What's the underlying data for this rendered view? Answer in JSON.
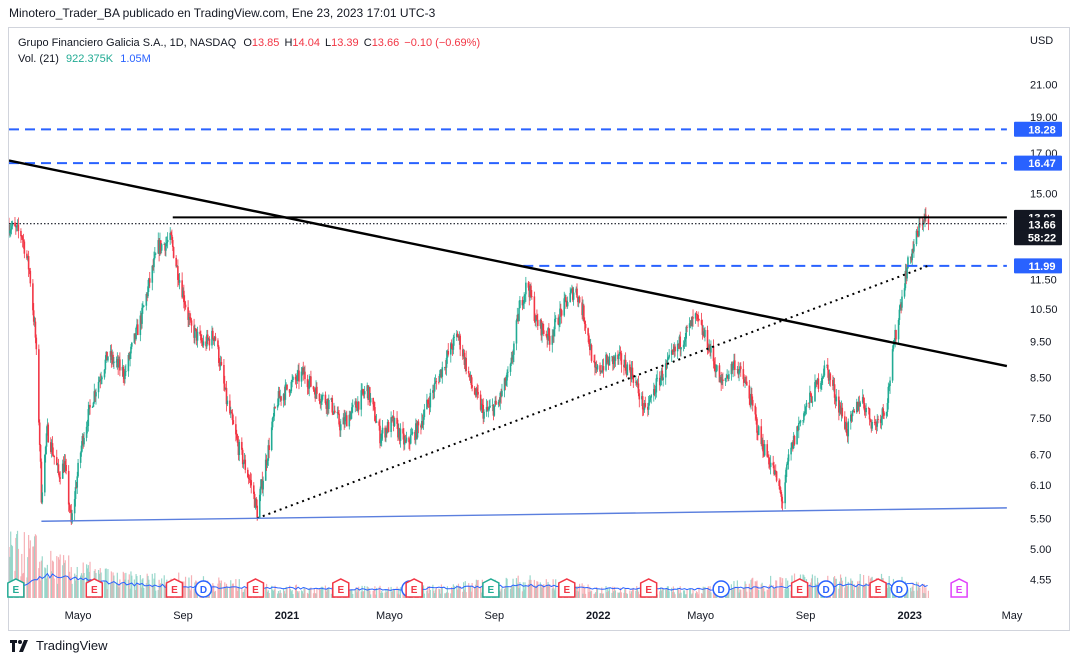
{
  "header": {
    "publisher_line": "Minotero_Trader_BA publicado en TradingView.com, Ene 23, 2023 17:01 UTC-3"
  },
  "legend": {
    "symbol": "Grupo Financiero Galicia S.A., 1D, NASDAQ",
    "o_label": "O",
    "o_value": "13.85",
    "h_label": "H",
    "h_value": "14.04",
    "l_label": "L",
    "l_value": "13.39",
    "c_label": "C",
    "c_value": "13.66",
    "change": "−0.10 (−0.69%)",
    "vol_label": "Vol. (21)",
    "vol_value": "922.375K",
    "vol_ma": "1.05M"
  },
  "footer": {
    "brand": "TradingView"
  },
  "colors": {
    "up": "#22ab94",
    "down": "#f23645",
    "blue_line": "#2962ff",
    "trend": "#000000",
    "support": "#5b7fde"
  },
  "chart_data": {
    "type": "candlestick",
    "currency": "USD",
    "y_scale": "log",
    "ylim": [
      4.3,
      23.5
    ],
    "y_ticks": [
      "21.00",
      "19.00",
      "17.00",
      "15.00",
      "11.50",
      "10.50",
      "9.50",
      "8.50",
      "7.50",
      "6.70",
      "6.10",
      "5.50",
      "5.00",
      "4.55"
    ],
    "x_ticks": [
      "Mayo",
      "Sep",
      "2021",
      "Mayo",
      "Sep",
      "2022",
      "Mayo",
      "Sep",
      "2023",
      "May"
    ],
    "x_tick_dates": [
      "2020-05-01",
      "2020-09-01",
      "2021-01-01",
      "2021-05-01",
      "2021-09-01",
      "2022-01-01",
      "2022-05-01",
      "2022-09-01",
      "2023-01-01",
      "2023-05-01"
    ],
    "price_path": [
      [
        "2020-02-10",
        13.6
      ],
      [
        "2020-02-25",
        13.2
      ],
      [
        "2020-03-05",
        11.8
      ],
      [
        "2020-03-12",
        9.6
      ],
      [
        "2020-03-19",
        5.9
      ],
      [
        "2020-03-26",
        7.2
      ],
      [
        "2020-04-08",
        6.3
      ],
      [
        "2020-04-15",
        6.5
      ],
      [
        "2020-04-23",
        5.4
      ],
      [
        "2020-05-06",
        7.0
      ],
      [
        "2020-05-20",
        8.1
      ],
      [
        "2020-06-05",
        9.1
      ],
      [
        "2020-06-25",
        8.6
      ],
      [
        "2020-07-15",
        10.3
      ],
      [
        "2020-08-03",
        12.7
      ],
      [
        "2020-08-18",
        13.0
      ],
      [
        "2020-08-25",
        11.9
      ],
      [
        "2020-09-10",
        9.9
      ],
      [
        "2020-09-25",
        9.4
      ],
      [
        "2020-10-08",
        9.7
      ],
      [
        "2020-10-22",
        7.9
      ],
      [
        "2020-11-04",
        6.9
      ],
      [
        "2020-11-20",
        6.1
      ],
      [
        "2020-11-27",
        5.6
      ],
      [
        "2020-12-10",
        6.8
      ],
      [
        "2020-12-20",
        7.9
      ],
      [
        "2021-01-05",
        8.3
      ],
      [
        "2021-01-20",
        8.6
      ],
      [
        "2021-02-05",
        8.1
      ],
      [
        "2021-02-22",
        7.8
      ],
      [
        "2021-03-05",
        7.3
      ],
      [
        "2021-03-20",
        7.7
      ],
      [
        "2021-04-05",
        8.2
      ],
      [
        "2021-04-20",
        7.1
      ],
      [
        "2021-05-05",
        7.4
      ],
      [
        "2021-05-20",
        6.9
      ],
      [
        "2021-06-05",
        7.3
      ],
      [
        "2021-06-20",
        8.1
      ],
      [
        "2021-07-05",
        8.9
      ],
      [
        "2021-07-20",
        9.7
      ],
      [
        "2021-08-05",
        8.3
      ],
      [
        "2021-08-20",
        7.6
      ],
      [
        "2021-09-05",
        7.8
      ],
      [
        "2021-09-20",
        8.7
      ],
      [
        "2021-10-01",
        10.6
      ],
      [
        "2021-10-10",
        11.4
      ],
      [
        "2021-10-20",
        10.1
      ],
      [
        "2021-11-05",
        9.6
      ],
      [
        "2021-11-20",
        10.5
      ],
      [
        "2021-12-05",
        11.2
      ],
      [
        "2021-12-15",
        10.3
      ],
      [
        "2021-12-28",
        8.6
      ],
      [
        "2022-01-10",
        8.9
      ],
      [
        "2022-01-25",
        9.0
      ],
      [
        "2022-02-10",
        8.6
      ],
      [
        "2022-02-25",
        7.6
      ],
      [
        "2022-03-10",
        8.3
      ],
      [
        "2022-03-25",
        8.9
      ],
      [
        "2022-04-10",
        9.6
      ],
      [
        "2022-04-25",
        10.2
      ],
      [
        "2022-05-10",
        9.4
      ],
      [
        "2022-05-25",
        8.3
      ],
      [
        "2022-06-10",
        8.9
      ],
      [
        "2022-06-25",
        8.2
      ],
      [
        "2022-07-10",
        7.0
      ],
      [
        "2022-07-25",
        6.4
      ],
      [
        "2022-08-05",
        5.8
      ],
      [
        "2022-08-12",
        6.6
      ],
      [
        "2022-08-25",
        7.4
      ],
      [
        "2022-09-10",
        8.1
      ],
      [
        "2022-09-25",
        8.8
      ],
      [
        "2022-10-05",
        8.1
      ],
      [
        "2022-10-20",
        7.2
      ],
      [
        "2022-11-05",
        8.0
      ],
      [
        "2022-11-20",
        7.3
      ],
      [
        "2022-12-05",
        7.8
      ],
      [
        "2022-12-15",
        9.6
      ],
      [
        "2022-12-28",
        11.8
      ],
      [
        "2023-01-10",
        13.2
      ],
      [
        "2023-01-18",
        14.0
      ],
      [
        "2023-01-23",
        13.66
      ]
    ],
    "volume_axis_max": 5000000,
    "volume_path": [
      [
        "2020-03-12",
        4500000
      ],
      [
        "2020-03-20",
        3400000
      ],
      [
        "2020-06-20",
        1800000
      ],
      [
        "2020-09-01",
        1700000
      ],
      [
        "2021-01-01",
        900000
      ],
      [
        "2021-06-01",
        800000
      ],
      [
        "2021-10-10",
        1600000
      ],
      [
        "2022-01-01",
        800000
      ],
      [
        "2022-05-01",
        800000
      ],
      [
        "2022-08-05",
        1700000
      ],
      [
        "2022-12-20",
        1600000
      ],
      [
        "2023-01-23",
        922375
      ]
    ],
    "volume_ma_path": [
      [
        "2020-02-10",
        700000
      ],
      [
        "2020-03-25",
        1800000
      ],
      [
        "2020-06-15",
        1200000
      ],
      [
        "2020-09-01",
        900000
      ],
      [
        "2021-01-01",
        800000
      ],
      [
        "2021-05-01",
        700000
      ],
      [
        "2021-10-10",
        1000000
      ],
      [
        "2022-01-01",
        800000
      ],
      [
        "2022-05-01",
        700000
      ],
      [
        "2022-08-05",
        900000
      ],
      [
        "2022-12-20",
        1100000
      ],
      [
        "2023-01-23",
        1050000
      ]
    ],
    "drawings": {
      "descending_trendline": [
        [
          "2020-02-10",
          16.6
        ],
        [
          "2023-04-25",
          8.8
        ]
      ],
      "rising_dotted": [
        [
          "2020-11-27",
          5.5
        ],
        [
          "2023-01-23",
          12.0
        ]
      ],
      "support_line": [
        [
          "2020-03-19",
          5.45
        ],
        [
          "2023-04-25",
          5.68
        ]
      ],
      "resistance_13_93": [
        "2020-08-20",
        "2023-04-25",
        13.93
      ],
      "close_dotted": [
        "2020-02-10",
        "2023-04-25",
        13.66
      ],
      "dashed_levels": [
        {
          "price": 18.28,
          "from": "2020-02-10",
          "to": "2023-04-25"
        },
        {
          "price": 16.47,
          "from": "2020-02-10",
          "to": "2023-04-25"
        },
        {
          "price": 11.99,
          "from": "2021-10-05",
          "to": "2023-04-25"
        }
      ]
    },
    "price_tags": [
      {
        "label": "18.28",
        "kind": "blue"
      },
      {
        "label": "16.47",
        "kind": "blue"
      },
      {
        "label": "13.93",
        "kind": "black"
      },
      {
        "label": "13.66",
        "kind": "black"
      },
      {
        "label": "58:22",
        "kind": "black"
      },
      {
        "label": "11.99",
        "kind": "blue"
      }
    ],
    "events": [
      {
        "date": "2020-02-18",
        "type": "E",
        "kind": "earnings_green"
      },
      {
        "date": "2020-05-20",
        "type": "E",
        "kind": "earnings_red"
      },
      {
        "date": "2020-08-22",
        "type": "E",
        "kind": "earnings_red"
      },
      {
        "date": "2020-09-25",
        "type": "D",
        "kind": "dividend"
      },
      {
        "date": "2020-11-25",
        "type": "E",
        "kind": "earnings_red"
      },
      {
        "date": "2021-03-05",
        "type": "E",
        "kind": "earnings_red"
      },
      {
        "date": "2021-05-25",
        "type": "D",
        "kind": "dividend"
      },
      {
        "date": "2021-05-30",
        "type": "E",
        "kind": "earnings_red"
      },
      {
        "date": "2021-08-28",
        "type": "E",
        "kind": "earnings_green"
      },
      {
        "date": "2021-11-25",
        "type": "E",
        "kind": "earnings_red"
      },
      {
        "date": "2022-03-01",
        "type": "E",
        "kind": "earnings_red"
      },
      {
        "date": "2022-05-25",
        "type": "D",
        "kind": "dividend"
      },
      {
        "date": "2022-08-25",
        "type": "E",
        "kind": "earnings_red"
      },
      {
        "date": "2022-09-25",
        "type": "D",
        "kind": "dividend"
      },
      {
        "date": "2022-11-25",
        "type": "E",
        "kind": "earnings_red"
      },
      {
        "date": "2022-12-20",
        "type": "D",
        "kind": "dividend"
      },
      {
        "date": "2023-02-28",
        "type": "E",
        "kind": "earnings_future"
      }
    ]
  }
}
